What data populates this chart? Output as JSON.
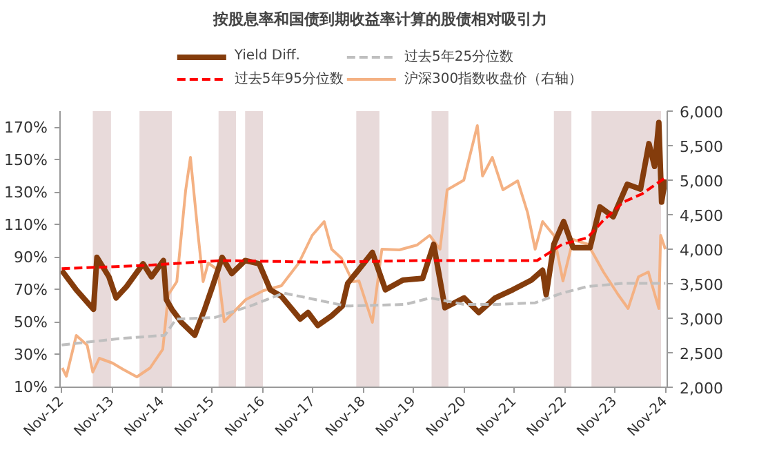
{
  "chart_data": {
    "type": "line",
    "title": "按股息率和国债到期收益率计算的股债相对吸引力",
    "legend": "top",
    "grid": false,
    "line_style": "solid",
    "marker": "none",
    "xlim": [
      "2012-10-20",
      "2024-11-15"
    ],
    "xticks": [
      {
        "value": "2012-11-01",
        "label": "Nov-12"
      },
      {
        "value": "2013-11-01",
        "label": "Nov-13"
      },
      {
        "value": "2014-11-01",
        "label": "Nov-14"
      },
      {
        "value": "2015-11-01",
        "label": "Nov-15"
      },
      {
        "value": "2016-11-01",
        "label": "Nov-16"
      },
      {
        "value": "2017-11-01",
        "label": "Nov-17"
      },
      {
        "value": "2018-11-01",
        "label": "Nov-18"
      },
      {
        "value": "2019-11-01",
        "label": "Nov-19"
      },
      {
        "value": "2020-11-01",
        "label": "Nov-20"
      },
      {
        "value": "2021-11-01",
        "label": "Nov-21"
      },
      {
        "value": "2022-11-01",
        "label": "Nov-22"
      },
      {
        "value": "2023-11-01",
        "label": "Nov-23"
      },
      {
        "value": "2024-11-01",
        "label": "Nov-24"
      }
    ],
    "ylim": [
      10,
      180
    ],
    "yticks": [
      {
        "value": 10,
        "label": "10%"
      },
      {
        "value": 30,
        "label": "30%"
      },
      {
        "value": 50,
        "label": "50%"
      },
      {
        "value": 70,
        "label": "70%"
      },
      {
        "value": 90,
        "label": "90%"
      },
      {
        "value": 110,
        "label": "110%"
      },
      {
        "value": 130,
        "label": "130%"
      },
      {
        "value": 150,
        "label": "150%"
      },
      {
        "value": 170,
        "label": "170%"
      }
    ],
    "y2lim": [
      2000,
      6000
    ],
    "y2ticks": [
      {
        "value": 2000,
        "label": "2,000"
      },
      {
        "value": 2500,
        "label": "2,500"
      },
      {
        "value": 3000,
        "label": "3,000"
      },
      {
        "value": 3500,
        "label": "3,500"
      },
      {
        "value": 4000,
        "label": "4,000"
      },
      {
        "value": 4500,
        "label": "4,500"
      },
      {
        "value": 5000,
        "label": "5,000"
      },
      {
        "value": 5500,
        "label": "5,500"
      },
      {
        "value": 6000,
        "label": "6,000"
      }
    ],
    "bands": [
      {
        "axis": "x",
        "from": "2013-06-15",
        "to": "2013-10-25",
        "color": "#e8dada"
      },
      {
        "axis": "x",
        "from": "2014-05-20",
        "to": "2015-01-10",
        "color": "#e8dada"
      },
      {
        "axis": "x",
        "from": "2015-12-15",
        "to": "2016-04-20",
        "color": "#e8dada"
      },
      {
        "axis": "x",
        "from": "2016-06-25",
        "to": "2016-11-01",
        "color": "#e8dada"
      },
      {
        "axis": "x",
        "from": "2018-09-10",
        "to": "2019-02-25",
        "color": "#e8dada"
      },
      {
        "axis": "x",
        "from": "2020-03-10",
        "to": "2020-07-10",
        "color": "#e8dada"
      },
      {
        "axis": "x",
        "from": "2022-08-15",
        "to": "2022-12-20",
        "color": "#e8dada"
      },
      {
        "axis": "x",
        "from": "2023-05-15",
        "to": "2024-10-01",
        "color": "#e8dada"
      }
    ],
    "series": [
      {
        "name": "Yield Diff.",
        "color": "#843c0c",
        "x": [
          "2012-11-01",
          "2013-02-15",
          "2013-06-20",
          "2013-07-15",
          "2013-10-10",
          "2013-12-01",
          "2014-02-15",
          "2014-06-15",
          "2014-08-15",
          "2014-11-10",
          "2014-12-01",
          "2015-01-10",
          "2015-03-20",
          "2015-06-25",
          "2015-09-05",
          "2015-11-01",
          "2016-01-10",
          "2016-03-20",
          "2016-06-25",
          "2016-10-05",
          "2016-12-25",
          "2017-03-15",
          "2017-07-30",
          "2017-09-25",
          "2017-12-05",
          "2018-03-15",
          "2018-06-01",
          "2018-07-10",
          "2018-09-25",
          "2019-01-05",
          "2019-04-10",
          "2019-08-15",
          "2020-01-05",
          "2020-03-25",
          "2020-06-15",
          "2020-11-01",
          "2021-02-15",
          "2021-06-15",
          "2021-10-20",
          "2022-03-05",
          "2022-05-25",
          "2022-06-20",
          "2022-08-15",
          "2022-10-25",
          "2023-01-01",
          "2023-05-05",
          "2023-07-15",
          "2023-10-20",
          "2024-01-30",
          "2024-05-05",
          "2024-07-05",
          "2024-08-15",
          "2024-09-15",
          "2024-10-05",
          "2024-11-01"
        ],
        "values": [
          82,
          70,
          58,
          90,
          78,
          65,
          72,
          86,
          78,
          88,
          64,
          58,
          50,
          42,
          58,
          72,
          90,
          80,
          88,
          86,
          70,
          66,
          52,
          56,
          48,
          54,
          60,
          74,
          82,
          93,
          70,
          76,
          77,
          98,
          59,
          65,
          56,
          65,
          70,
          76,
          82,
          67,
          98,
          112,
          96,
          96,
          121,
          115,
          135,
          132,
          160,
          146,
          173,
          124,
          138
        ]
      },
      {
        "name": "过去5年95分位数",
        "color": "#ff0000",
        "line_style": "dashed",
        "x": [
          "2012-11-01",
          "2014-07-01",
          "2016-01-01",
          "2018-01-01",
          "2020-01-01",
          "2022-04-15",
          "2022-10-15",
          "2023-04-15",
          "2023-08-01",
          "2024-01-01",
          "2024-05-15",
          "2024-11-01"
        ],
        "values": [
          83,
          85,
          88,
          87,
          88,
          88,
          98,
          102,
          112,
          124,
          129,
          139
        ]
      },
      {
        "name": "过去5年25分位数",
        "color": "#bfbfbf",
        "line_style": "dashed",
        "x": [
          "2012-11-01",
          "2014-01-01",
          "2014-11-20",
          "2015-02-10",
          "2015-11-20",
          "2016-08-01",
          "2017-04-01",
          "2018-07-01",
          "2019-09-01",
          "2020-03-01",
          "2020-11-01",
          "2021-07-01",
          "2022-04-01",
          "2022-10-15",
          "2023-04-15",
          "2024-01-01",
          "2024-11-01"
        ],
        "values": [
          36,
          40,
          42,
          52,
          53,
          60,
          68,
          60,
          61,
          65,
          61,
          61,
          62,
          68,
          72,
          74,
          74
        ]
      },
      {
        "name": "沪深300指数收盘价（右轴）",
        "color": "#f4b183",
        "axis": "y2",
        "x": [
          "2012-11-05",
          "2012-12-05",
          "2013-02-15",
          "2013-05-05",
          "2013-06-15",
          "2013-08-01",
          "2013-11-05",
          "2014-01-20",
          "2014-05-01",
          "2014-08-05",
          "2014-11-05",
          "2014-12-15",
          "2015-02-15",
          "2015-04-20",
          "2015-05-25",
          "2015-07-20",
          "2015-08-25",
          "2015-10-01",
          "2015-12-10",
          "2016-01-25",
          "2016-06-30",
          "2016-11-05",
          "2017-03-15",
          "2017-07-20",
          "2017-10-25",
          "2018-01-20",
          "2018-03-15",
          "2018-05-25",
          "2018-08-15",
          "2018-09-30",
          "2019-01-05",
          "2019-03-15",
          "2019-07-20",
          "2019-11-25",
          "2020-02-25",
          "2020-05-10",
          "2020-07-01",
          "2020-10-30",
          "2021-02-05",
          "2021-03-15",
          "2021-05-25",
          "2021-08-10",
          "2021-11-25",
          "2022-02-05",
          "2022-04-01",
          "2022-05-25",
          "2022-08-15",
          "2022-10-20",
          "2023-01-01",
          "2023-04-20",
          "2023-08-10",
          "2023-11-25",
          "2024-02-05",
          "2024-04-20",
          "2024-07-01",
          "2024-09-15",
          "2024-09-28",
          "2024-11-01"
        ],
        "values": [
          2280,
          2160,
          2750,
          2610,
          2220,
          2420,
          2350,
          2260,
          2150,
          2280,
          2550,
          3340,
          3530,
          4850,
          5330,
          4200,
          3530,
          3800,
          3700,
          2950,
          3270,
          3400,
          3470,
          3800,
          4200,
          4400,
          4000,
          3870,
          3530,
          3540,
          2940,
          4000,
          3990,
          4060,
          4200,
          4000,
          4860,
          5000,
          5790,
          5060,
          5330,
          4860,
          4990,
          4530,
          4000,
          4400,
          4200,
          3540,
          4140,
          4070,
          3670,
          3340,
          3140,
          3600,
          3670,
          3140,
          4200,
          4000
        ]
      }
    ]
  }
}
